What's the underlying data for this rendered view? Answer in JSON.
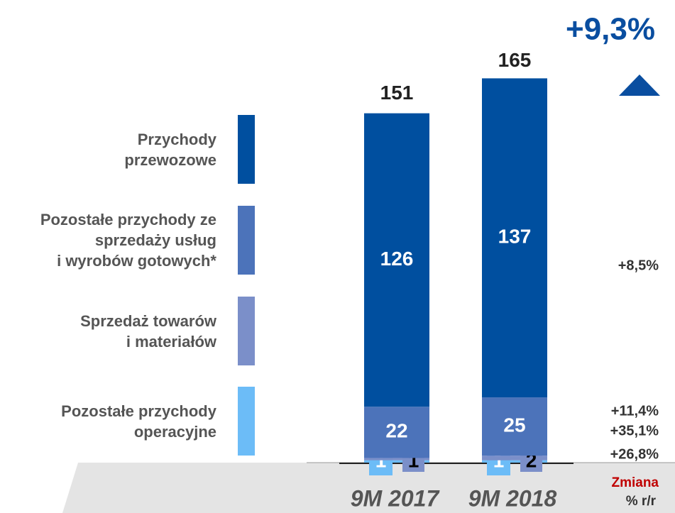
{
  "chart_data": {
    "type": "stacked_bar",
    "categories": [
      "9M 2017",
      "9M 2018"
    ],
    "series": [
      {
        "name": "Pozostałe przychody\noperacyjne",
        "color": "#6cbcf7",
        "label_color": "#ffffff",
        "values": [
          1,
          1
        ],
        "change": "+26,8%"
      },
      {
        "name": "Sprzedaż towarów\ni materiałów",
        "color": "#7b8fc9",
        "label_color": "#000000",
        "values": [
          1,
          2
        ],
        "change": "+35,1%"
      },
      {
        "name": "Pozostałe przychody ze\nsprzedaży usług\ni wyrobów gotowych*",
        "color": "#4c73ba",
        "label_color": "#ffffff",
        "values": [
          22,
          25
        ],
        "change": "+11,4%"
      },
      {
        "name": "Przychody\nprzewozowe",
        "color": "#004f9f",
        "label_color": "#ffffff",
        "values": [
          126,
          137
        ],
        "change": "+8,5%"
      }
    ],
    "totals": [
      151,
      165
    ],
    "total_change": "+9,3%",
    "change_header": [
      "Zmiana",
      "% r/r"
    ],
    "ylim": [
      0,
      170
    ]
  }
}
